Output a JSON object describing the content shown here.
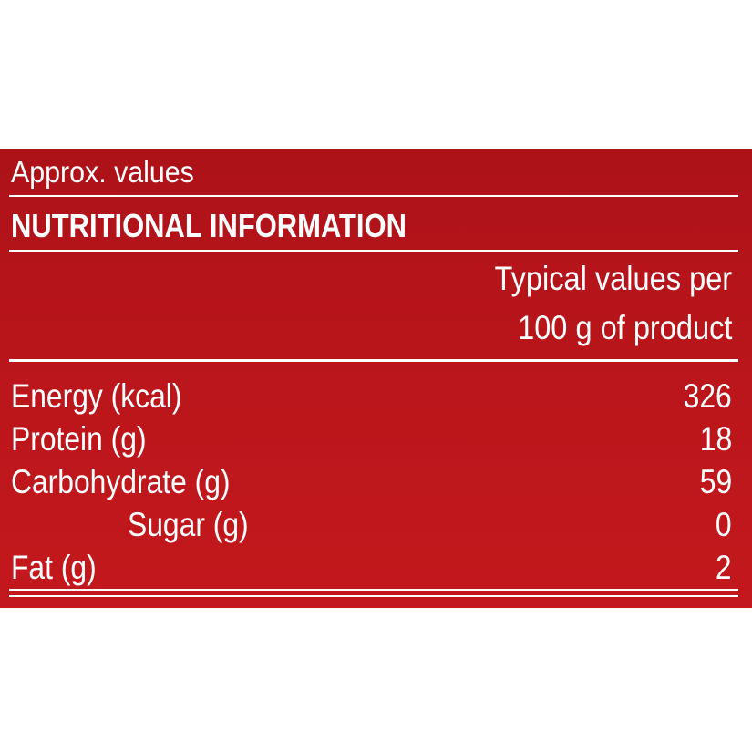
{
  "label": {
    "approx_text": "Approx. values",
    "title": "NUTRITIONAL INFORMATION",
    "column_header_line1": "Typical values per",
    "column_header_line2": "100 g of product",
    "rows": [
      {
        "name": "Energy (kcal)",
        "value": "326"
      },
      {
        "name": "Protein (g)",
        "value": "18"
      },
      {
        "name": "Carbohydrate (g)",
        "value": "59"
      },
      {
        "name": "Sugar (g)",
        "value": "0"
      },
      {
        "name": "Fat (g)",
        "value": "2"
      }
    ]
  },
  "colors": {
    "panel_background": "#bb161b",
    "text": "#ffffff",
    "page_background": "#ffffff"
  }
}
